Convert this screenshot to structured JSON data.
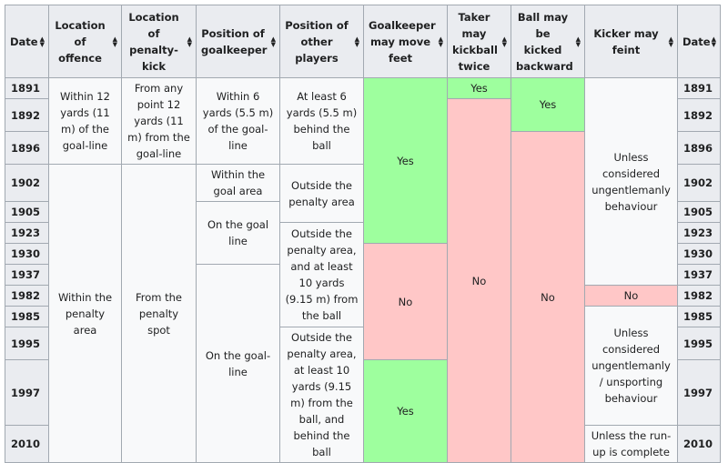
{
  "headers": {
    "date": "Date",
    "location_offence": "Location of offence",
    "location_penalty": "Location of penalty-kick",
    "position_goalkeeper": "Position of goalkeeper",
    "position_players": "Position of other players",
    "gk_move": "Goalkeeper may move feet",
    "taker_twice": "Taker may kickball twice",
    "ball_backward": "Ball may be kicked backward",
    "kicker_feint": "Kicker may feint",
    "date_right": "Date"
  },
  "dates": [
    "1891",
    "1892",
    "1896",
    "1902",
    "1905",
    "1923",
    "1930",
    "1937",
    "1982",
    "1985",
    "1995",
    "1997",
    "2010"
  ],
  "cells": {
    "offence_1891": "Within 12 yards (11 m) of the goal-line",
    "offence_1902": "Within the penalty area",
    "penalty_1891": "From any point 12 yards (11 m) from the goal-line",
    "penalty_1902": "From the penalty spot",
    "gk_1891": "Within 6 yards (5.5 m) of the goal-line",
    "gk_1902": "Within the goal area",
    "gk_1905": "On the goal line",
    "gk_1930": "On the goal-line",
    "players_1891": "At least 6 yards (5.5 m) behind the ball",
    "players_1902": "Outside the penalty area",
    "players_1923": "Outside the penalty area, and at least 10 yards (9.15 m) from the ball",
    "players_1995": "Outside the penalty area, at least 10 yards (9.15 m) from the ball, and behind the ball",
    "move_1891": "Yes",
    "move_1930": "No",
    "move_1997": "Yes",
    "twice_1891": "Yes",
    "twice_1892": "No",
    "backward_1891": "Yes",
    "backward_1896": "No",
    "feint_1891": "Unless considered ungentlemanly behaviour",
    "feint_1982": "No",
    "feint_1985": "Unless considered ungentlemanly / unsporting behaviour",
    "feint_2010": "Unless the run-up is complete"
  },
  "sort_icon": "sort-arrows-icon",
  "colors": {
    "yes": "#9eff9e",
    "no": "#ffc7c7",
    "header": "#eaecf0",
    "cell": "#f8f9fa",
    "border": "#a2a9b1"
  }
}
